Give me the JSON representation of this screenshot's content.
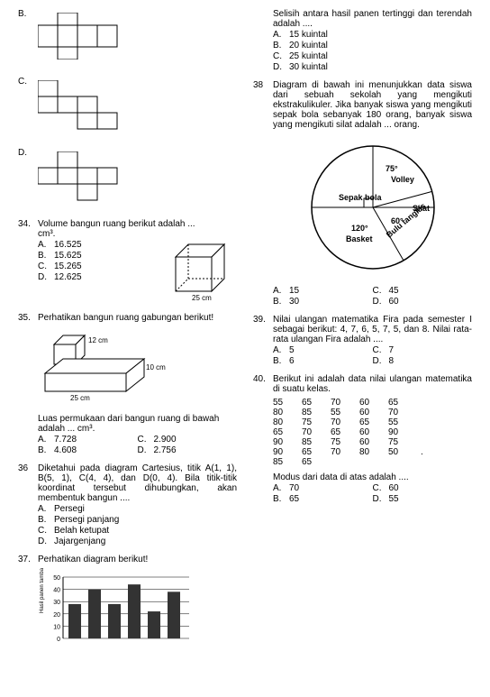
{
  "col1": {
    "netB_label": "B.",
    "netC_label": "C.",
    "netD_label": "D.",
    "q34": {
      "num": "34.",
      "text": "Volume bangun ruang berikut adalah ...",
      "unit": "cm³.",
      "opts": {
        "A": "16.525",
        "B": "15.625",
        "C": "15.265",
        "D": "12.625"
      },
      "cube_label": "25 cm"
    },
    "q35": {
      "num": "35.",
      "text": "Perhatikan bangun ruang gabungan berikut!",
      "dim1": "12 cm",
      "dim2": "10 cm",
      "dim3": "25 cm",
      "text2": "Luas permukaan dari bangun ruang di bawah adalah ... cm³.",
      "opts": {
        "A": "7.728",
        "B": "4.608",
        "C": "2.900",
        "D": "2.756"
      }
    },
    "q36": {
      "num": "36",
      "text": "Diketahui pada diagram Cartesius, titik A(1, 1), B(5, 1), C(4, 4), dan D(0, 4). Bila titik-titik koordinat tersebut dihubungkan, akan membentuk bangun ....",
      "opts": {
        "A": "Persegi",
        "B": "Persegi panjang",
        "C": "Belah ketupat",
        "D": "Jajargenjang"
      }
    },
    "q37": {
      "num": "37.",
      "text": "Perhatikan diagram berikut!",
      "chart": {
        "ylabel": "Hasil panen tambak (kuintal)",
        "yticks": [
          50,
          40,
          30,
          20,
          10,
          0
        ],
        "values": [
          28,
          40,
          28,
          44,
          22,
          38
        ],
        "bar_color": "#333333",
        "bg": "#ffffff",
        "width": 180,
        "height": 90
      }
    }
  },
  "col2": {
    "q37b": {
      "text": "Selisih antara hasil panen tertinggi dan terendah adalah ....",
      "opts": {
        "A": "15 kuintal",
        "B": "20 kuintal",
        "C": "25 kuintal",
        "D": "30 kuintal"
      }
    },
    "q38": {
      "num": "38",
      "text": "Diagram di bawah ini menunjukkan data siswa dari sebuah sekolah yang mengikuti ekstrakulikuler. Jika banyak siswa yang mengikuti sepak bola sebanyak 180 orang, banyak siswa yang mengikuti silat adalah ... orang.",
      "pie": {
        "slices": [
          {
            "label": "Sepak bola",
            "angle": ""
          },
          {
            "label": "Volley",
            "angle": "75°"
          },
          {
            "label": "Silat",
            "angle": ""
          },
          {
            "label": "Bulu tangkis",
            "angle": "60°"
          },
          {
            "label": "Basket",
            "angle": "120°"
          }
        ],
        "stroke": "#000000",
        "fill": "#ffffff"
      },
      "opts": {
        "A": "15",
        "B": "30",
        "C": "45",
        "D": "60"
      }
    },
    "q39": {
      "num": "39.",
      "text": "Nilai ulangan matematika Fira pada semester I sebagai berikut: 4, 7, 6, 5, 7, 5, dan 8. Nilai rata-rata ulangan Fira adalah ....",
      "opts": {
        "A": "5",
        "B": "6",
        "C": "7",
        "D": "8"
      }
    },
    "q40": {
      "num": "40.",
      "text": "Berikut ini adalah data nilai ulangan matematika di suatu kelas.",
      "rows": [
        [
          "55",
          "65",
          "70",
          "60",
          "65"
        ],
        [
          "80",
          "85",
          "55",
          "60",
          "70"
        ],
        [
          "80",
          "75",
          "70",
          "65",
          "55"
        ],
        [
          "65",
          "70",
          "65",
          "60",
          "90"
        ],
        [
          "90",
          "85",
          "75",
          "60",
          "75"
        ],
        [
          "90",
          "65",
          "70",
          "80",
          "50"
        ],
        [
          "85",
          "65",
          "",
          "",
          ""
        ]
      ],
      "dot": ".",
      "text2": "Modus dari data di atas adalah ....",
      "opts": {
        "A": "70",
        "B": "65",
        "C": "60",
        "D": "55"
      }
    }
  }
}
